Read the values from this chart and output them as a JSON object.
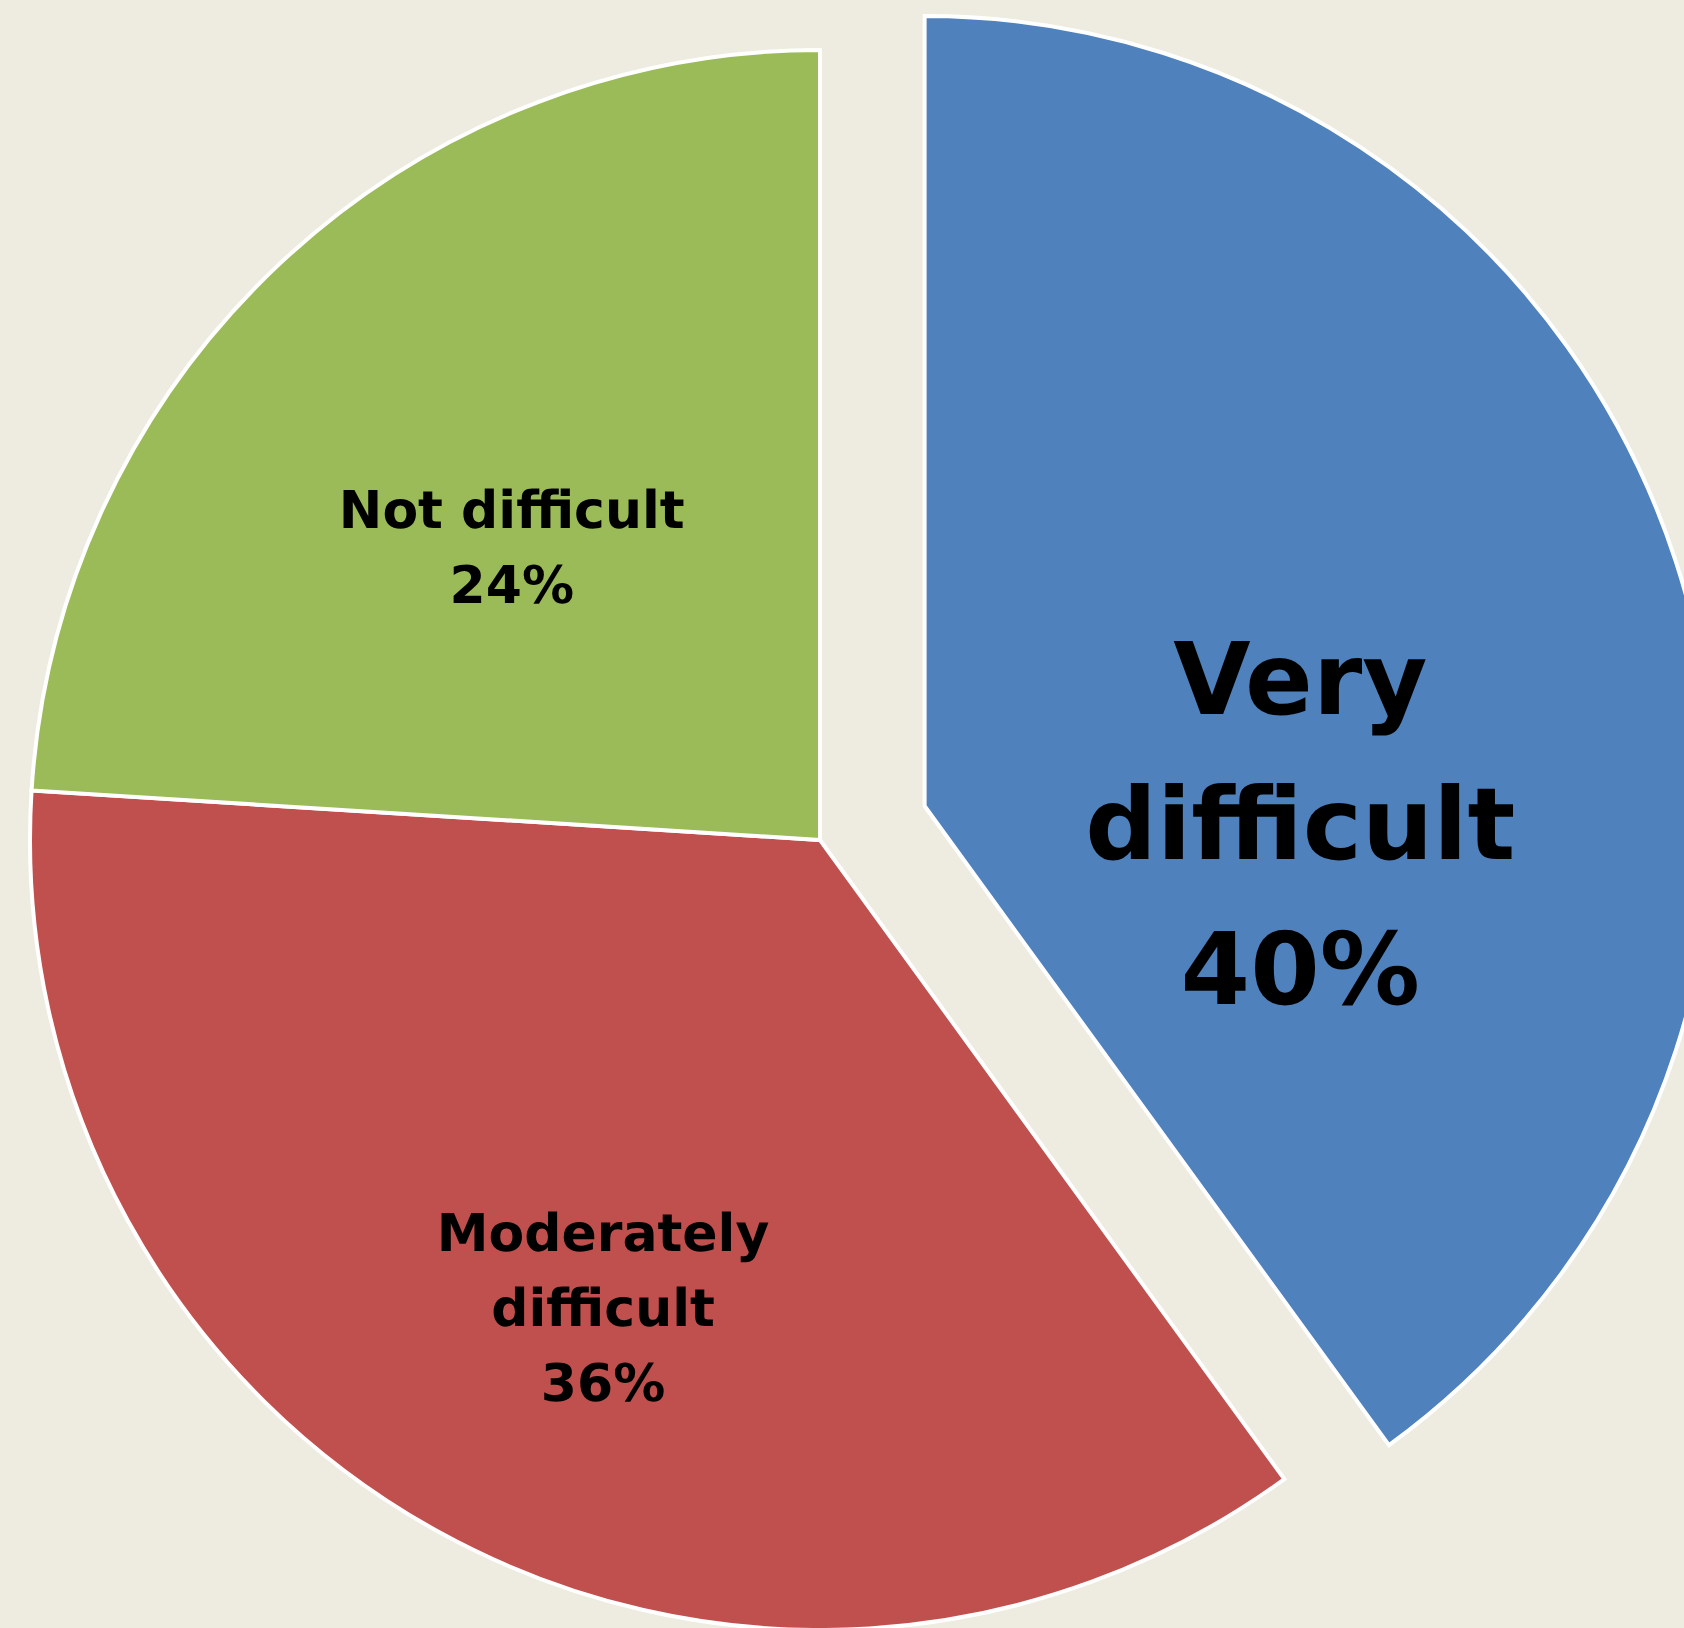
{
  "chart_data": {
    "type": "pie",
    "categories": [
      "Very difficult",
      "Moderately difficult",
      "Not difficult"
    ],
    "values": [
      40,
      36,
      24
    ],
    "colors": [
      "#4f81bd",
      "#c0504d",
      "#9bbb59"
    ],
    "value_labels": [
      "40%",
      "36%",
      "24%"
    ]
  }
}
